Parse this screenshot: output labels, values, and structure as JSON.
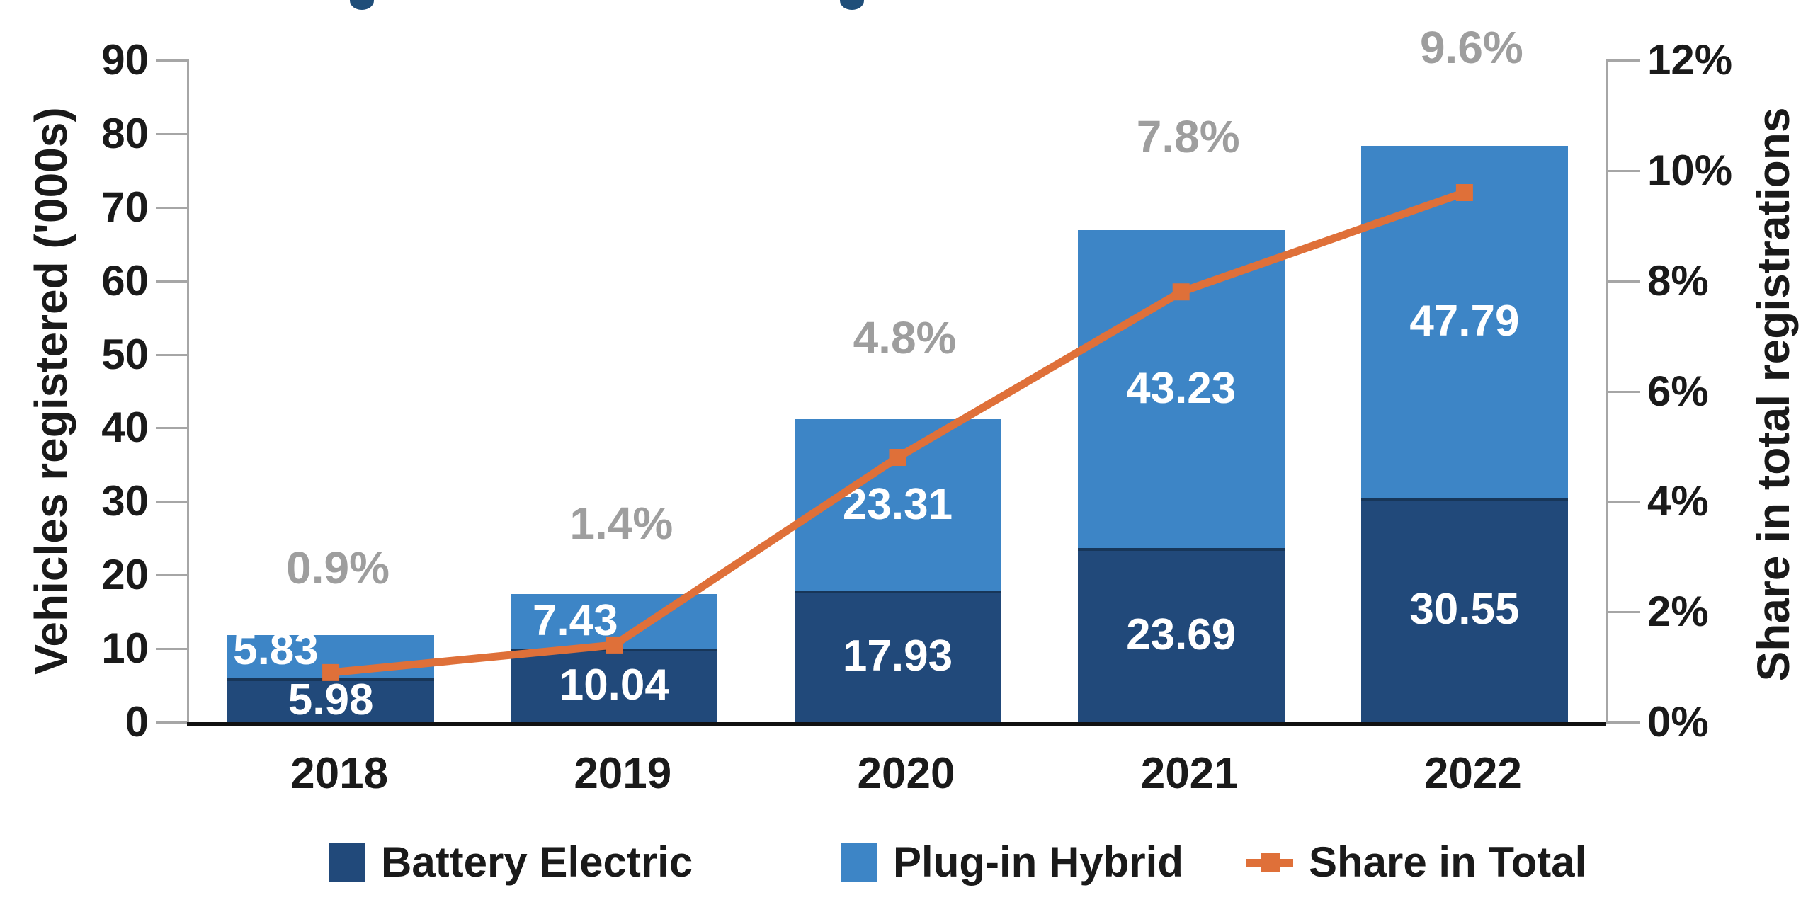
{
  "chart_data": {
    "type": "bar",
    "subtype": "stacked-bar-with-line-combo",
    "categories": [
      "2018",
      "2019",
      "2020",
      "2021",
      "2022"
    ],
    "bar_series": [
      {
        "name": "Battery Electric",
        "color": "#21497A",
        "edge_color": "#173659",
        "values": [
          5.98,
          10.04,
          17.93,
          23.69,
          30.55
        ],
        "labels": [
          "5.98",
          "10.04",
          "17.93",
          "23.69",
          "30.55"
        ],
        "label_color": "#FFFFFF"
      },
      {
        "name": "Plug-in Hybrid",
        "color": "#3D85C6",
        "values": [
          5.83,
          7.43,
          23.31,
          43.23,
          47.79
        ],
        "labels": [
          "5.83",
          "7.43",
          "23.31",
          "43.23",
          "47.79"
        ],
        "label_color": "#FFFFFF"
      }
    ],
    "line_series": {
      "name": "Share in Total",
      "color": "#DF7039",
      "marker": "square",
      "values": [
        0.9,
        1.4,
        4.8,
        7.8,
        9.6
      ],
      "labels": [
        "0.9%",
        "1.4%",
        "4.8%",
        "7.8%",
        "9.6%"
      ],
      "label_color": "#9E9E9E"
    },
    "left_axis": {
      "title": "Vehicles registered ('000s)",
      "min": 0,
      "max": 90,
      "tick_values": [
        0,
        10,
        20,
        30,
        40,
        50,
        60,
        70,
        80,
        90
      ],
      "tick_labels": [
        "0",
        "10",
        "20",
        "30",
        "40",
        "50",
        "60",
        "70",
        "80",
        "90"
      ]
    },
    "right_axis": {
      "title": "Share  in total registrations",
      "min": 0,
      "max": 12,
      "tick_values": [
        0,
        2,
        4,
        6,
        8,
        10,
        12
      ],
      "tick_labels": [
        "0%",
        "2%",
        "4%",
        "6%",
        "8%",
        "10%",
        "12%"
      ]
    },
    "grid": false,
    "legend_position": "bottom",
    "legend": [
      {
        "swatch": "square",
        "color": "#21497A",
        "label": "Battery Electric"
      },
      {
        "swatch": "square",
        "color": "#3D85C6",
        "label": "Plug-in Hybrid"
      },
      {
        "swatch": "line-marker",
        "color": "#DF7039",
        "label": "Share in Total"
      }
    ]
  }
}
